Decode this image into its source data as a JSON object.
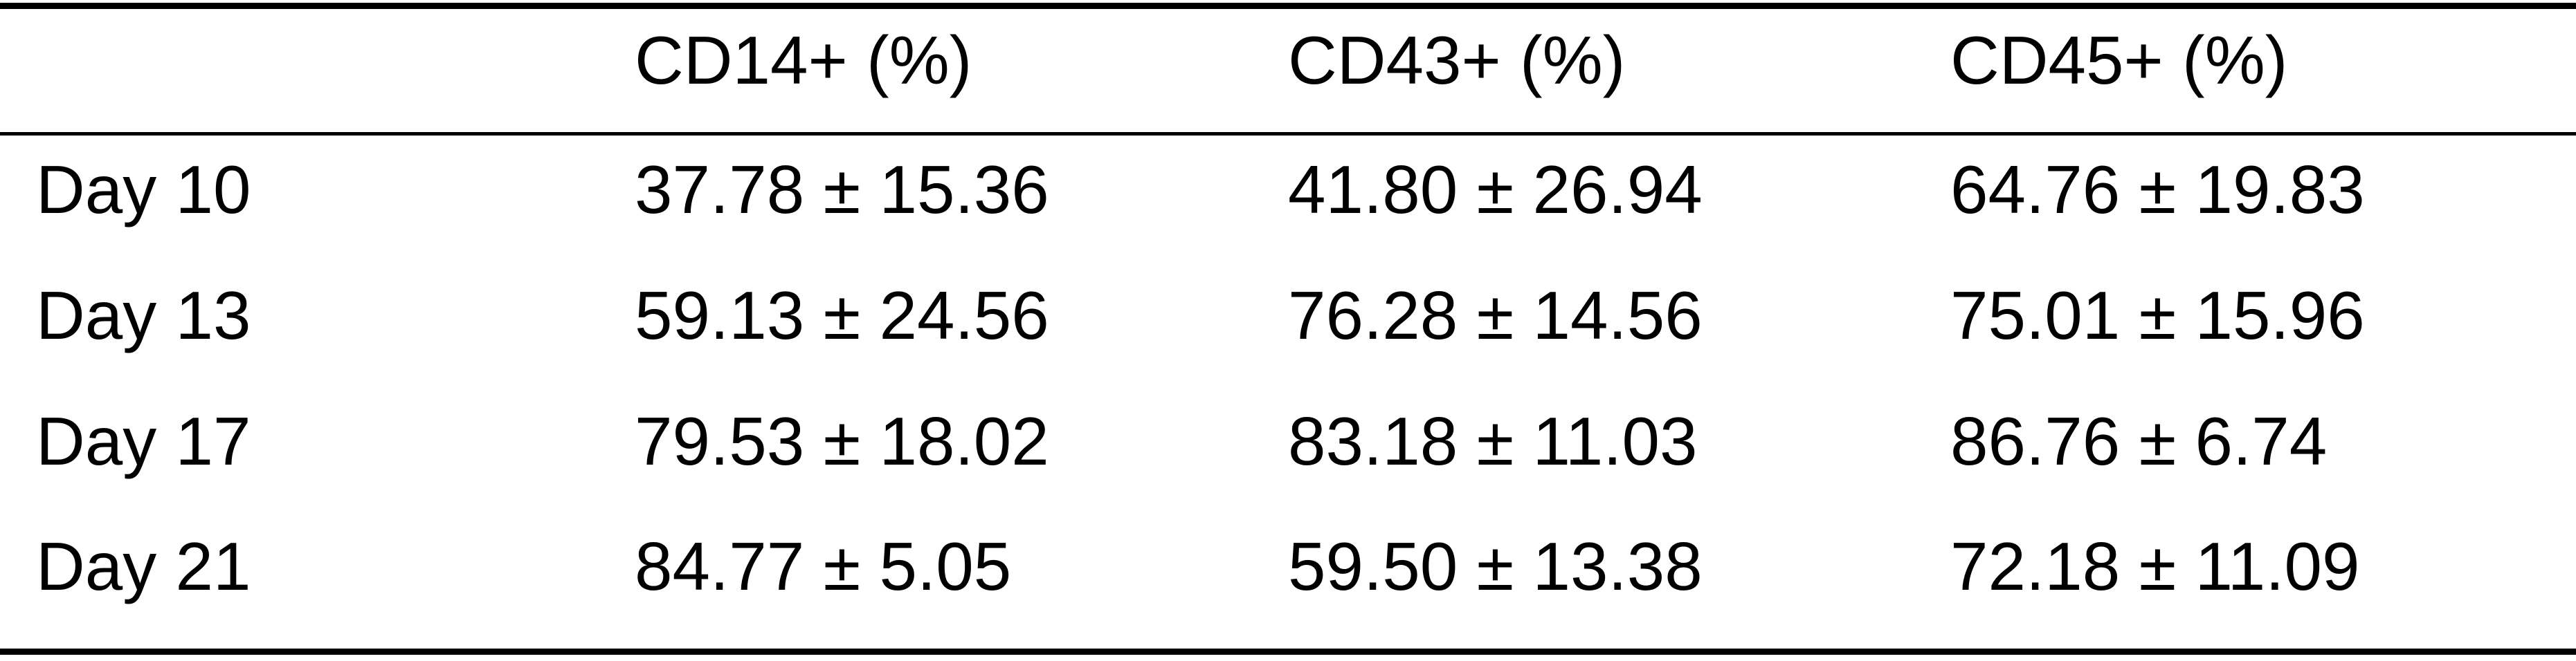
{
  "table": {
    "headers": [
      "",
      "CD14+ (%)",
      "CD43+ (%)",
      "CD45+ (%)"
    ],
    "rows": [
      [
        "Day 10",
        "37.78 ± 15.36",
        "41.80 ± 26.94",
        "64.76 ± 19.83"
      ],
      [
        "Day 13",
        "59.13 ± 24.56",
        "76.28 ± 14.56",
        "75.01 ± 15.96"
      ],
      [
        "Day 17",
        "79.53 ± 18.02",
        "83.18 ± 11.03",
        "86.76 ± 6.74"
      ],
      [
        "Day 21",
        "84.77 ± 5.05",
        "59.50 ± 13.38",
        "72.18 ± 11.09"
      ]
    ]
  }
}
